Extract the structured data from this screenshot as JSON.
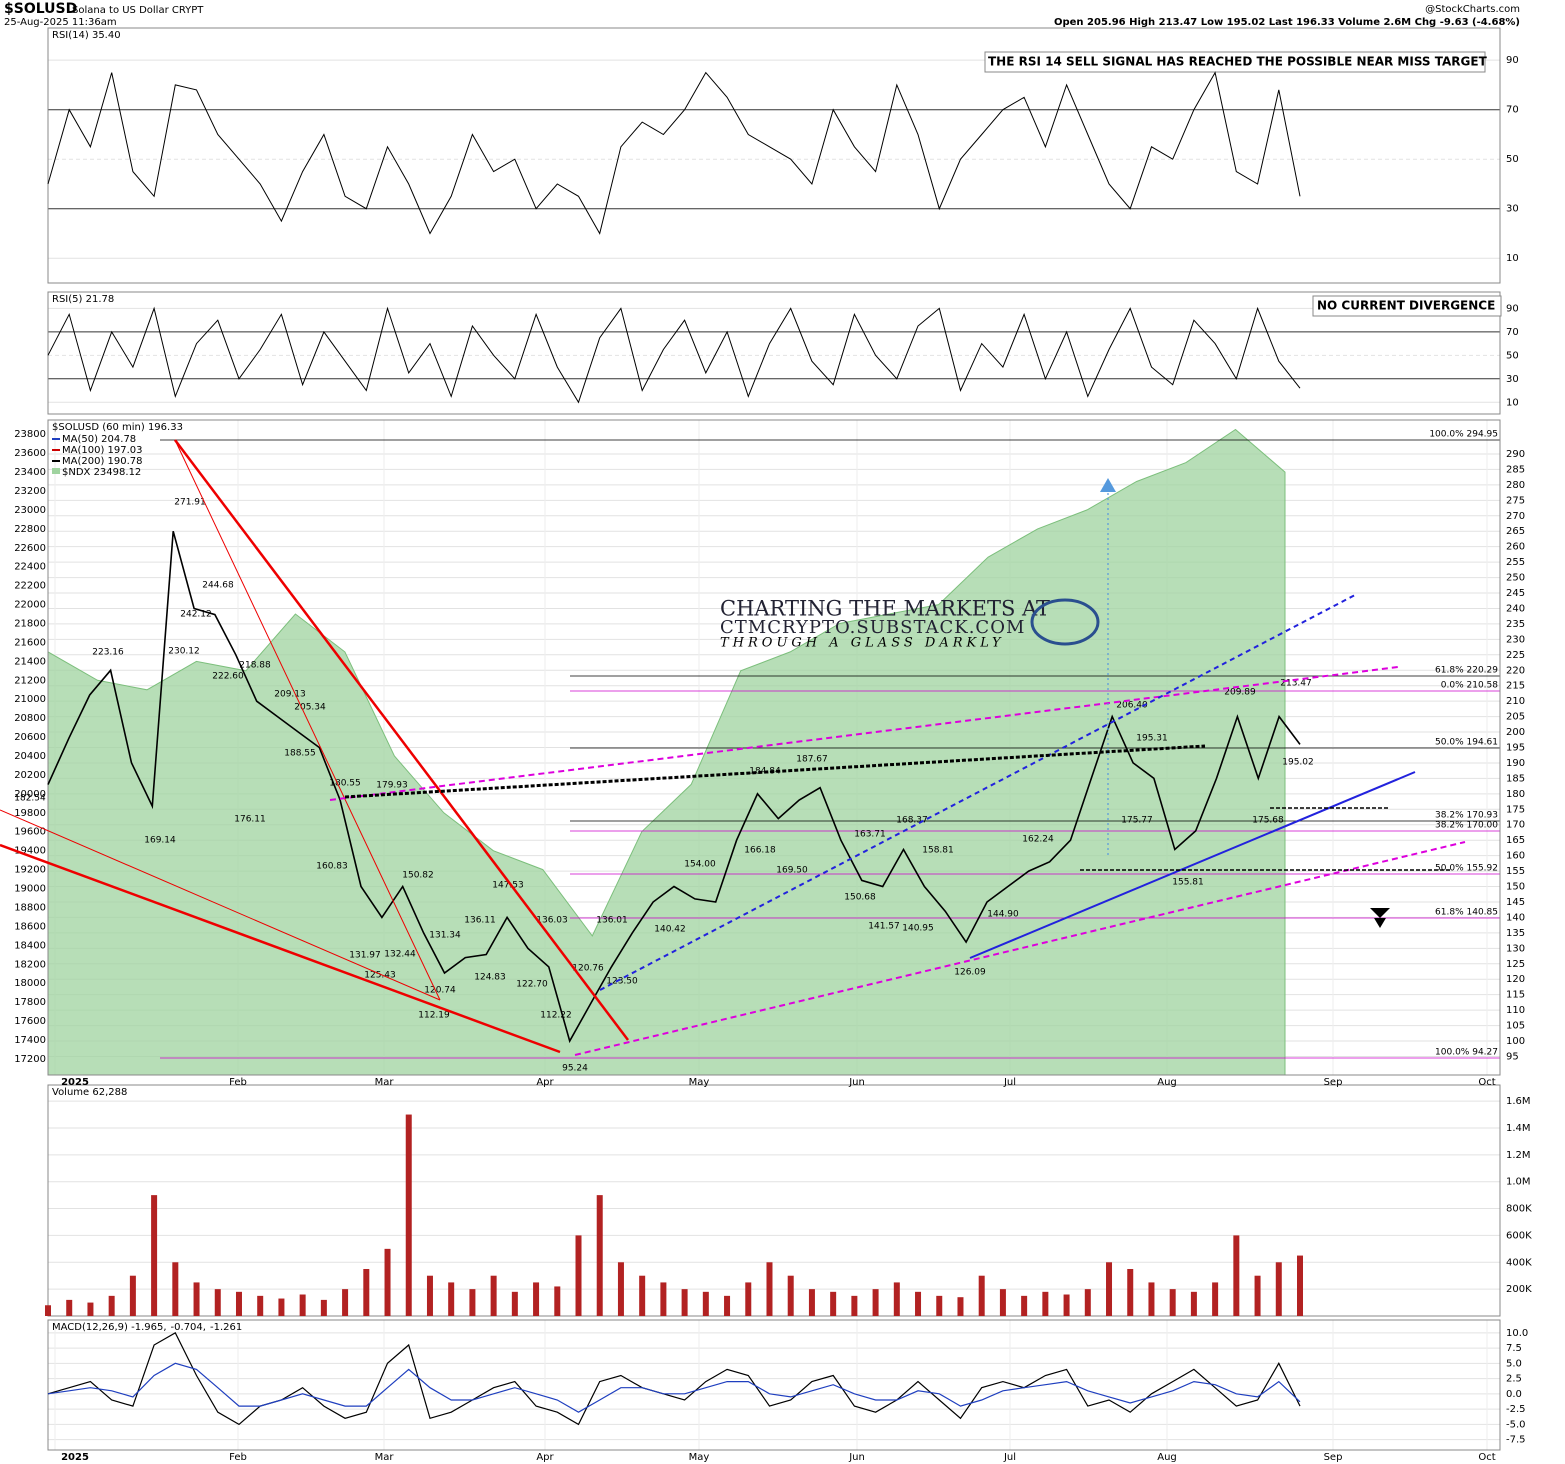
{
  "header": {
    "symbol": "$SOLUSD",
    "name": "Solana to US Dollar  CRYPT",
    "date": "25-Aug-2025 11:36am",
    "source": "@StockCharts.com",
    "quote": "Open 205.96  High 213.47  Low 195.02  Last 196.33  Volume 2.6M  Chg -9.63 (-4.68%)"
  },
  "watermark": [
    "CHARTING THE MARKETS AT",
    "CTMCRYPTO.SUBSTACK.COM",
    "THROUGH A GLASS DARKLY"
  ],
  "chart_data": [
    {
      "type": "line",
      "title": "RSI(14) 35.40",
      "color": "#000000",
      "annotation": "THE RSI 14 SELL SIGNAL HAS REACHED THE POSSIBLE NEAR MISS TARGET",
      "values": [
        40,
        70,
        55,
        85,
        45,
        35,
        80,
        78,
        60,
        50,
        40,
        25,
        45,
        60,
        35,
        30,
        55,
        40,
        20,
        35,
        60,
        45,
        50,
        30,
        40,
        35,
        20,
        55,
        65,
        60,
        70,
        85,
        75,
        60,
        55,
        50,
        40,
        70,
        55,
        45,
        80,
        60,
        30,
        50,
        60,
        70,
        75,
        55,
        80,
        60,
        40,
        30,
        55,
        50,
        70,
        85,
        45,
        40,
        78,
        35
      ],
      "ylim": [
        0,
        103
      ],
      "yticks": [
        10,
        30,
        50,
        70,
        90
      ],
      "grid": true
    },
    {
      "type": "line",
      "title": "RSI(5) 21.78",
      "color": "#000000",
      "annotation": "NO CURRENT DIVERGENCE",
      "values": [
        50,
        85,
        20,
        70,
        40,
        90,
        15,
        60,
        80,
        30,
        55,
        85,
        25,
        70,
        45,
        20,
        90,
        35,
        60,
        15,
        75,
        50,
        30,
        85,
        40,
        10,
        65,
        90,
        20,
        55,
        80,
        35,
        70,
        15,
        60,
        90,
        45,
        25,
        85,
        50,
        30,
        75,
        90,
        20,
        60,
        40,
        85,
        30,
        70,
        15,
        55,
        90,
        40,
        25,
        80,
        60,
        30,
        90,
        45,
        22
      ],
      "ylim": [
        0,
        104
      ],
      "yticks": [
        10,
        30,
        50,
        70,
        90
      ],
      "grid": true
    },
    {
      "type": "line",
      "title": "$SOLUSD (60 min) 196.33",
      "ma_legend": [
        {
          "name": "MA(50) 204.78",
          "color": "#1f3fbf"
        },
        {
          "name": "MA(100) 197.03",
          "color": "#cc0000"
        },
        {
          "name": "MA(200) 190.78",
          "color": "#000000"
        }
      ],
      "series": [
        {
          "name": "$NDX 23498.12",
          "color": "#9fd39f",
          "axis": "y2",
          "type": "area",
          "values": [
            21500,
            21200,
            21100,
            21400,
            21300,
            21900,
            21500,
            20400,
            19800,
            19400,
            19200,
            18500,
            19600,
            20100,
            21300,
            21500,
            21800,
            21900,
            22000,
            22500,
            22800,
            23000,
            23300,
            23500,
            23850,
            23400
          ]
        },
        {
          "name": "$SOLUSD",
          "color": "#000000",
          "axis": "y",
          "values": [
            183,
            198,
            212,
            220,
            190,
            176,
            265,
            240,
            238,
            225,
            210,
            205,
            200,
            195,
            178,
            150,
            140,
            150,
            135,
            122,
            127,
            128,
            140,
            130,
            124,
            100,
            112,
            124,
            135,
            145,
            150,
            146,
            145,
            165,
            180,
            172,
            178,
            182,
            165,
            152,
            150,
            162,
            150,
            142,
            132,
            145,
            150,
            155,
            158,
            165,
            185,
            205,
            190,
            185,
            162,
            168,
            185,
            205,
            185,
            205,
            196
          ]
        }
      ],
      "ylim": [
        89,
        301
      ],
      "yticks": [
        95,
        100,
        105,
        110,
        115,
        120,
        125,
        130,
        135,
        140,
        145,
        150,
        155,
        160,
        165,
        170,
        175,
        180,
        185,
        190,
        195,
        200,
        205,
        210,
        215,
        220,
        225,
        230,
        235,
        240,
        245,
        250,
        255,
        260,
        265,
        270,
        275,
        280,
        285,
        290
      ],
      "y2lim": [
        17030,
        23950
      ],
      "y2ticks": [
        17200,
        17400,
        17600,
        17800,
        18000,
        18200,
        18400,
        18600,
        18800,
        19000,
        19200,
        19400,
        19600,
        19800,
        20000,
        20200,
        20400,
        20600,
        20800,
        21000,
        21200,
        21400,
        21600,
        21800,
        22000,
        22200,
        22400,
        22600,
        22800,
        23000,
        23200,
        23400,
        23600,
        23800
      ],
      "months": [
        "2025",
        "Feb",
        "Mar",
        "Apr",
        "May",
        "Jun",
        "Jul",
        "Aug",
        "Sep",
        "Oct"
      ],
      "price_labels": [
        "271.91",
        "223.16",
        "182.54",
        "169.14",
        "244.68",
        "242.12",
        "230.12",
        "222.60",
        "218.88",
        "209.13",
        "205.34",
        "188.55",
        "180.55",
        "176.11",
        "179.93",
        "160.83",
        "150.82",
        "131.97",
        "125.43",
        "132.44",
        "131.34",
        "136.11",
        "147.53",
        "120.74",
        "112.19",
        "124.83",
        "122.70",
        "136.03",
        "112.22",
        "120.76",
        "123.50",
        "95.24",
        "136.01",
        "140.42",
        "154.00",
        "166.18",
        "184.84",
        "187.67",
        "169.50",
        "163.71",
        "150.68",
        "141.57",
        "140.95",
        "168.37",
        "158.81",
        "144.90",
        "126.09",
        "162.24",
        "206.40",
        "195.31",
        "175.77",
        "155.81",
        "209.89",
        "213.47",
        "195.02",
        "175.68"
      ],
      "fib_labels": [
        "100.0% 294.95",
        "61.8% 220.29",
        "0.0% 210.58",
        "50.0% 194.61",
        "38.2% 170.93",
        "38.2% 170.00",
        "50.0% 155.92",
        "61.8% 140.85",
        "100.0% 94.27"
      ]
    },
    {
      "type": "bar",
      "title": "Volume 62,288",
      "color": "#b22222",
      "values": [
        80000,
        120000,
        100000,
        150000,
        300000,
        900000,
        400000,
        250000,
        200000,
        180000,
        150000,
        130000,
        160000,
        120000,
        200000,
        350000,
        500000,
        1500000,
        300000,
        250000,
        200000,
        300000,
        180000,
        250000,
        220000,
        600000,
        900000,
        400000,
        300000,
        250000,
        200000,
        180000,
        150000,
        250000,
        400000,
        300000,
        200000,
        180000,
        150000,
        200000,
        250000,
        180000,
        150000,
        140000,
        300000,
        200000,
        150000,
        180000,
        160000,
        200000,
        400000,
        350000,
        250000,
        200000,
        180000,
        250000,
        600000,
        300000,
        400000,
        450000
      ],
      "ylim": [
        0,
        1720000
      ],
      "yticks": [
        {
          "value": 200000,
          "label": "200K"
        },
        {
          "value": 400000,
          "label": "400K"
        },
        {
          "value": 600000,
          "label": "600K"
        },
        {
          "value": 800000,
          "label": "800K"
        },
        {
          "value": 1000000,
          "label": "1.0M"
        },
        {
          "value": 1200000,
          "label": "1.2M"
        },
        {
          "value": 1400000,
          "label": "1.4M"
        },
        {
          "value": 1600000,
          "label": "1.6M"
        }
      ]
    },
    {
      "type": "line",
      "title_parts": [
        {
          "text": "MACD(12,26,9) -1.965,",
          "color": "#000000"
        },
        {
          "text": "-0.704,",
          "color": "#cc0000"
        },
        {
          "text": "-1.261",
          "color": "#1f3fbf"
        }
      ],
      "series": [
        {
          "name": "MACD",
          "color": "#000000",
          "values": [
            0,
            1,
            2,
            -1,
            -2,
            8,
            10,
            3,
            -3,
            -5,
            -2,
            -1,
            1,
            -2,
            -4,
            -3,
            5,
            8,
            -4,
            -3,
            -1,
            1,
            2,
            -2,
            -3,
            -5,
            2,
            3,
            1,
            0,
            -1,
            2,
            4,
            3,
            -2,
            -1,
            2,
            3,
            -2,
            -3,
            -1,
            2,
            -1,
            -4,
            1,
            2,
            1,
            3,
            4,
            -2,
            -1,
            -3,
            0,
            2,
            4,
            1,
            -2,
            -1,
            5,
            -2
          ]
        },
        {
          "name": "Signal",
          "color": "#1f3fbf",
          "values": [
            0,
            0.5,
            1,
            0.5,
            -0.5,
            3,
            5,
            4,
            1,
            -2,
            -2,
            -1,
            0,
            -1,
            -2,
            -2,
            1,
            4,
            1,
            -1,
            -1,
            0,
            1,
            0,
            -1,
            -3,
            -1,
            1,
            1,
            0,
            0,
            1,
            2,
            2,
            0,
            -0.5,
            0.5,
            1.5,
            0,
            -1,
            -1,
            0.5,
            0,
            -2,
            -1,
            0.5,
            1,
            1.5,
            2,
            0.5,
            -0.5,
            -1.5,
            -0.5,
            0.5,
            2,
            1.5,
            0,
            -0.5,
            2,
            -1.3
          ]
        }
      ],
      "ylim": [
        -9.2,
        12.1
      ],
      "yticks": [
        {
          "value": 10,
          "label": "10.0"
        },
        {
          "value": 7.5,
          "label": "7.5"
        },
        {
          "value": 5,
          "label": "5.0"
        },
        {
          "value": 2.5,
          "label": "2.5"
        },
        {
          "value": 0,
          "label": "0.0"
        },
        {
          "value": -2.5,
          "label": "-2.5"
        },
        {
          "value": -5,
          "label": "-5.0"
        },
        {
          "value": -7.5,
          "label": "-7.5"
        }
      ],
      "months": [
        "2025",
        "Feb",
        "Mar",
        "Apr",
        "May",
        "Jun",
        "Jul",
        "Aug",
        "Sep",
        "Oct"
      ]
    }
  ]
}
